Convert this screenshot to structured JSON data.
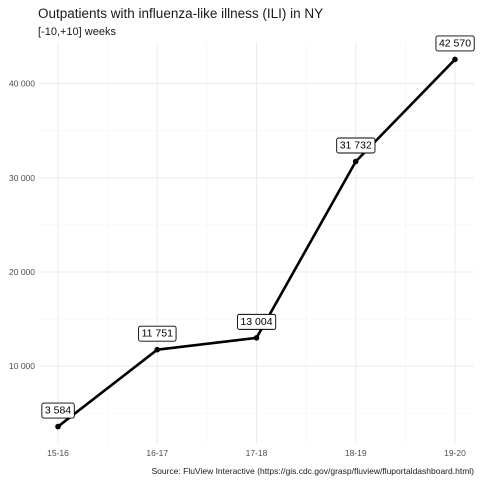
{
  "chart_data": {
    "type": "line",
    "title": "Outpatients with influenza-like illness (ILI) in NY",
    "subtitle": "[-10,+10] weeks",
    "caption": "Source: FluView Interactive (https://gis.cdc.gov/grasp/fluview/fluportaldashboard.html)",
    "xlabel": "",
    "ylabel": "",
    "categories": [
      "15-16",
      "16-17",
      "17-18",
      "18-19",
      "19-20"
    ],
    "values": [
      3584,
      11751,
      13004,
      31732,
      42570
    ],
    "data_labels": [
      "3 584",
      "11 751",
      "13 004",
      "31 732",
      "42 570"
    ],
    "y_ticks": [
      10000,
      20000,
      30000,
      40000
    ],
    "y_tick_labels": [
      "10 000",
      "20 000",
      "30 000",
      "40 000"
    ],
    "ylim": [
      1735,
      44420
    ],
    "grid": true,
    "legend": "none",
    "colors": {
      "line": "#000000",
      "grid": "#ebebeb",
      "text": "#1a1a1a"
    }
  }
}
